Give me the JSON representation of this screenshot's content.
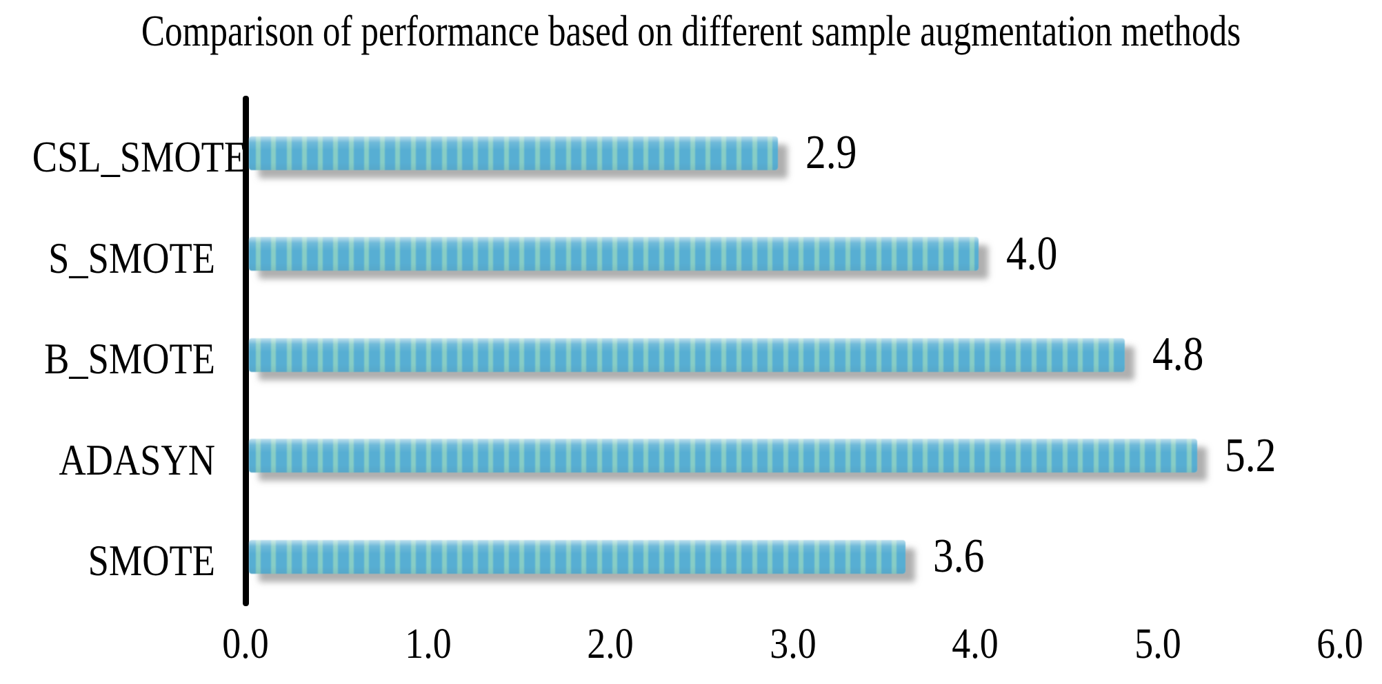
{
  "page": {
    "background": "#ffffff"
  },
  "chart_data": {
    "type": "bar",
    "orientation": "horizontal",
    "title": "Comparison of performance based on different sample augmentation methods",
    "categories": [
      "CSL_SMOTE",
      "S_SMOTE",
      "B_SMOTE",
      "ADASYN",
      "SMOTE"
    ],
    "values": [
      2.9,
      4.0,
      4.8,
      5.2,
      3.6
    ],
    "value_labels": [
      "2.9",
      "4.0",
      "4.8",
      "5.2",
      "3.6"
    ],
    "xlabel": "",
    "ylabel": "",
    "xlim": [
      0.0,
      6.0
    ],
    "x_tick_labels": [
      "0.0",
      "1.0",
      "2.0",
      "3.0",
      "4.0",
      "5.0",
      "6.0"
    ],
    "x_tick_values": [
      0,
      1,
      2,
      3,
      4,
      5,
      6
    ],
    "grid": false,
    "legend": false,
    "colors": {
      "bar_stripe_blue": "#57aed3",
      "bar_stripe_teal": "#87cdc5",
      "bar_shadow": "rgba(122,122,122,0.6)",
      "axis_line": "#000000",
      "text": "#000000"
    }
  }
}
